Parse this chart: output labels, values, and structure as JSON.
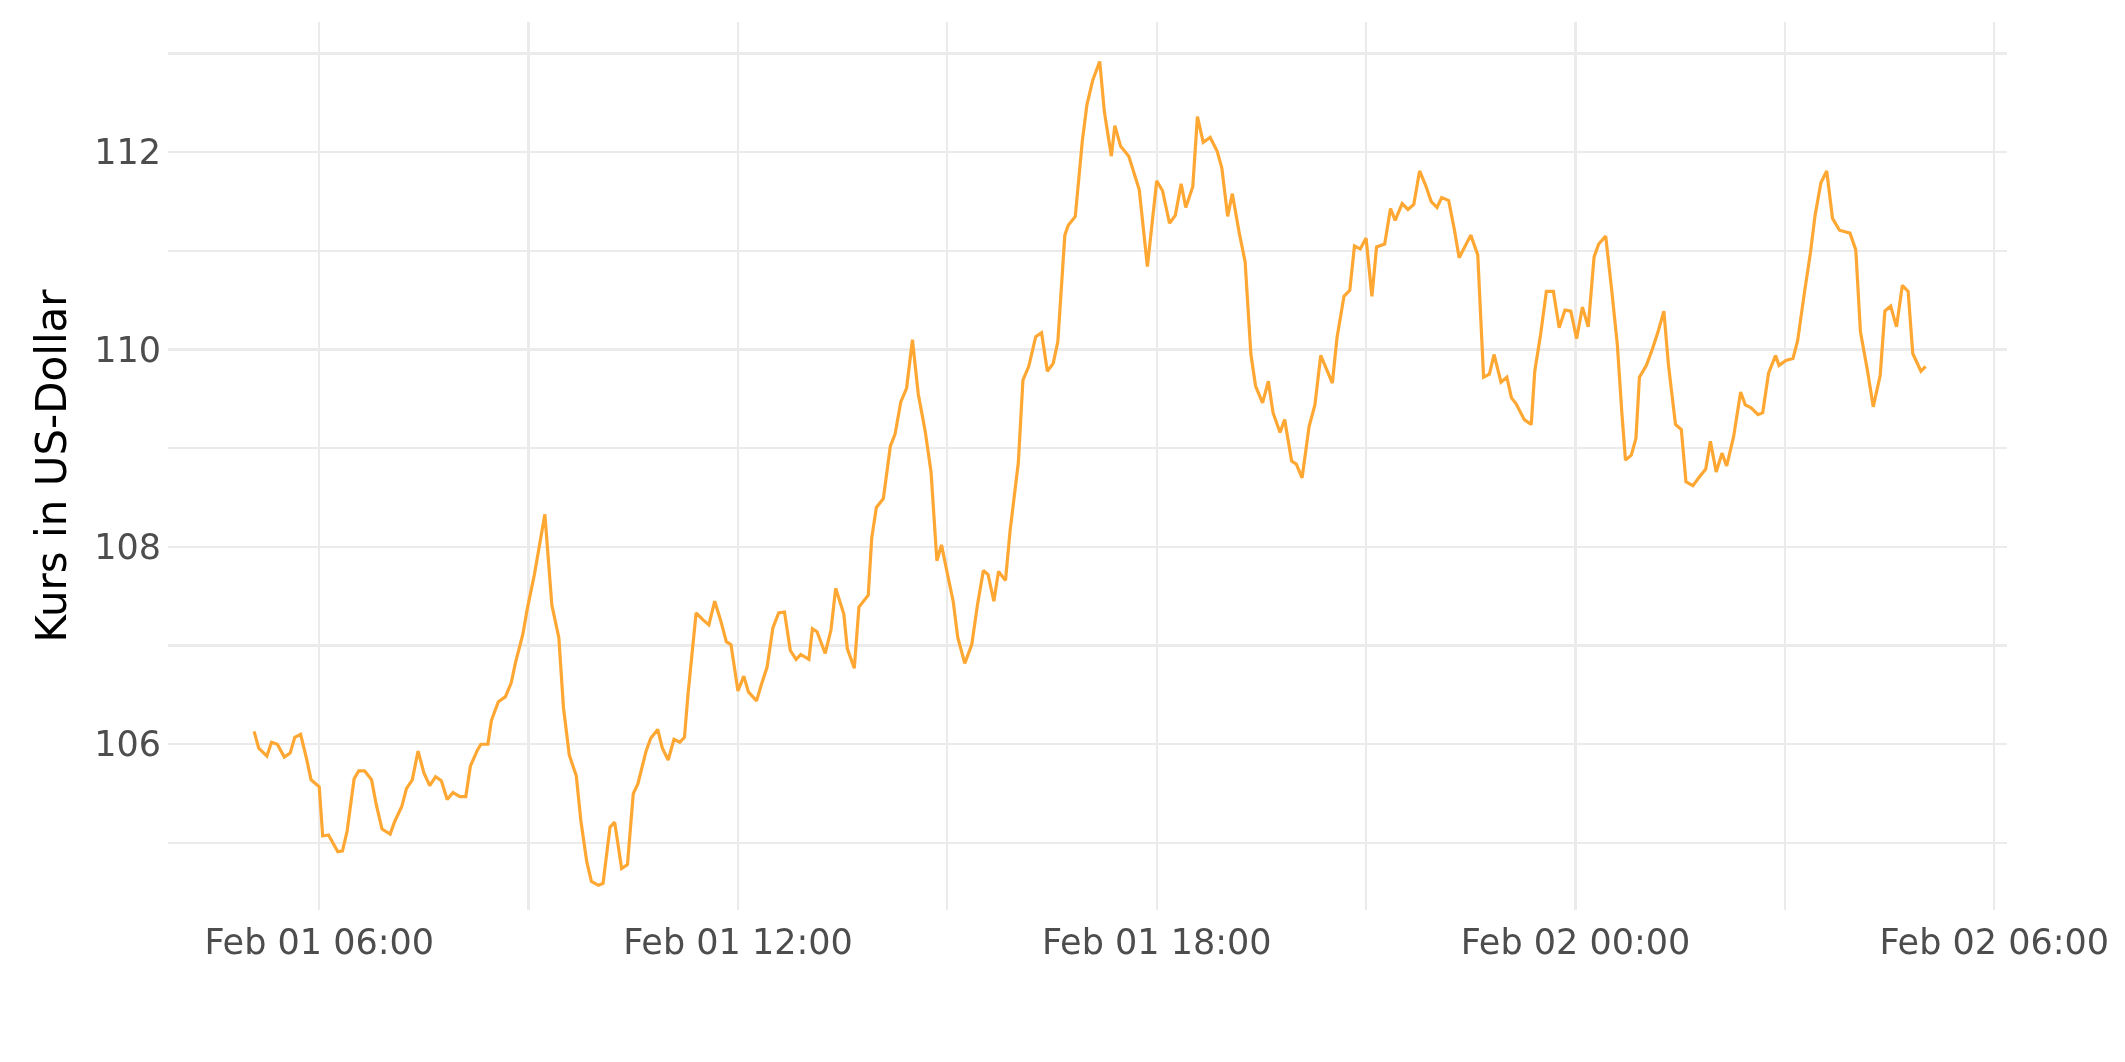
{
  "chart_data": {
    "type": "line",
    "ylabel": "Kurs in US-Dollar",
    "xlim": [
      "--02-01T03:50",
      "--02-02T06:11"
    ],
    "xticks": [
      {
        "value": "--02-01T06:00",
        "label": "Feb 01 06:00"
      },
      {
        "value": "--02-01T09:00",
        "label": null
      },
      {
        "value": "--02-01T12:00",
        "label": "Feb 01 12:00"
      },
      {
        "value": "--02-01T15:00",
        "label": null
      },
      {
        "value": "--02-01T18:00",
        "label": "Feb 01 18:00"
      },
      {
        "value": "--02-01T21:00",
        "label": null
      },
      {
        "value": "--02-02T00:00",
        "label": "Feb 02 00:00"
      },
      {
        "value": "--02-02T03:00",
        "label": null
      },
      {
        "value": "--02-02T06:00",
        "label": "Feb 02 06:00"
      }
    ],
    "ylim": [
      104.32,
      113.32
    ],
    "yticks": [
      {
        "value": 105,
        "label": null
      },
      106,
      {
        "value": 107,
        "label": null
      },
      108,
      {
        "value": 109,
        "label": null
      },
      110,
      {
        "value": 111,
        "label": null
      },
      112,
      {
        "value": 113,
        "label": null
      }
    ],
    "grid": true,
    "marker": "none",
    "line_style": "solid",
    "series": [
      {
        "color": "#ffa733",
        "x": [
          "--02-01T05:04",
          "--02-01T05:08",
          "--02-01T05:15",
          "--02-01T05:19",
          "--02-01T05:24",
          "--02-01T05:30",
          "--02-01T05:35",
          "--02-01T05:39",
          "--02-01T05:44",
          "--02-01T05:49",
          "--02-01T05:53",
          "--02-01T06:00",
          "--02-01T06:03",
          "--02-01T06:08",
          "--02-01T06:16",
          "--02-01T06:20",
          "--02-01T06:24",
          "--02-01T06:30",
          "--02-01T06:34",
          "--02-01T06:39",
          "--02-01T06:45",
          "--02-01T06:49",
          "--02-01T06:54",
          "--02-01T07:01",
          "--02-01T07:05",
          "--02-01T07:11",
          "--02-01T07:15",
          "--02-01T07:20",
          "--02-01T07:25",
          "--02-01T07:30",
          "--02-01T07:35",
          "--02-01T07:40",
          "--02-01T07:45",
          "--02-01T07:50",
          "--02-01T07:55",
          "--02-01T08:01",
          "--02-01T08:06",
          "--02-01T08:10",
          "--02-01T08:16",
          "--02-01T08:19",
          "--02-01T08:25",
          "--02-01T08:28",
          "--02-01T08:34",
          "--02-01T08:40",
          "--02-01T08:45",
          "--02-01T08:49",
          "--02-01T08:55",
          "--02-01T08:59",
          "--02-01T09:05",
          "--02-01T09:14",
          "--02-01T09:20",
          "--02-01T09:26",
          "--02-01T09:30",
          "--02-01T09:35",
          "--02-01T09:41",
          "--02-01T09:45",
          "--02-01T09:50",
          "--02-01T09:54",
          "--02-01T10:00",
          "--02-01T10:04",
          "--02-01T10:10",
          "--02-01T10:14",
          "--02-01T10:20",
          "--02-01T10:25",
          "--02-01T10:30",
          "--02-01T10:34",
          "--02-01T10:41",
          "--02-01T10:45",
          "--02-01T10:51",
          "--02-01T10:55",
          "--02-01T11:00",
          "--02-01T11:05",
          "--02-01T11:10",
          "--02-01T11:14",
          "--02-01T11:17",
          "--02-01T11:24",
          "--02-01T11:30",
          "--02-01T11:35",
          "--02-01T11:40",
          "--02-01T11:45",
          "--02-01T11:50",
          "--02-01T11:54",
          "--02-01T12:00",
          "--02-01T12:05",
          "--02-01T12:09",
          "--02-01T12:16",
          "--02-01T12:20",
          "--02-01T12:25",
          "--02-01T12:30",
          "--02-01T12:35",
          "--02-01T12:40",
          "--02-01T12:45",
          "--02-01T12:50",
          "--02-01T12:54",
          "--02-01T13:01",
          "--02-01T13:04",
          "--02-01T13:08",
          "--02-01T13:15",
          "--02-01T13:20",
          "--02-01T13:24",
          "--02-01T13:31",
          "--02-01T13:34",
          "--02-01T13:40",
          "--02-01T13:44",
          "--02-01T13:52",
          "--02-01T13:55",
          "--02-01T13:59",
          "--02-01T14:05",
          "--02-01T14:11",
          "--02-01T14:15",
          "--02-01T14:20",
          "--02-01T14:25",
          "--02-01T14:30",
          "--02-01T14:35",
          "--02-01T14:41",
          "--02-01T14:46",
          "--02-01T14:51",
          "--02-01T14:55",
          "--02-01T15:00",
          "--02-01T15:05",
          "--02-01T15:09",
          "--02-01T15:15",
          "--02-01T15:21",
          "--02-01T15:26",
          "--02-01T15:31",
          "--02-01T15:35",
          "--02-01T15:40",
          "--02-01T15:44",
          "--02-01T15:50",
          "--02-01T15:54",
          "--02-01T16:01",
          "--02-01T16:05",
          "--02-01T16:10",
          "--02-01T16:16",
          "--02-01T16:21",
          "--02-01T16:26",
          "--02-01T16:31",
          "--02-01T16:35",
          "--02-01T16:41",
          "--02-01T16:44",
          "--02-01T16:50",
          "--02-01T16:56",
          "--02-01T17:00",
          "--02-01T17:05",
          "--02-01T17:11",
          "--02-01T17:15",
          "--02-01T17:21",
          "--02-01T17:24",
          "--02-01T17:29",
          "--02-01T17:36",
          "--02-01T17:45",
          "--02-01T17:52",
          "--02-01T18:00",
          "--02-01T18:05",
          "--02-01T18:11",
          "--02-01T18:16",
          "--02-01T18:21",
          "--02-01T18:25",
          "--02-01T18:31",
          "--02-01T18:35",
          "--02-01T18:40",
          "--02-01T18:46",
          "--02-01T18:52",
          "--02-01T18:56",
          "--02-01T19:01",
          "--02-01T19:05",
          "--02-01T19:11",
          "--02-01T19:16",
          "--02-01T19:21",
          "--02-01T19:25",
          "--02-01T19:31",
          "--02-01T19:36",
          "--02-01T19:40",
          "--02-01T19:46",
          "--02-01T19:50",
          "--02-01T19:56",
          "--02-01T20:00",
          "--02-01T20:05",
          "--02-01T20:11",
          "--02-01T20:16",
          "--02-01T20:21",
          "--02-01T20:31",
          "--02-01T20:35",
          "--02-01T20:41",
          "--02-01T20:46",
          "--02-01T20:50",
          "--02-01T20:55",
          "--02-01T21:00",
          "--02-01T21:05",
          "--02-01T21:09",
          "--02-01T21:16",
          "--02-01T21:21",
          "--02-01T21:25",
          "--02-01T21:31",
          "--02-01T21:36",
          "--02-01T21:41",
          "--02-01T21:46",
          "--02-01T21:51",
          "--02-01T21:56",
          "--02-01T22:01",
          "--02-01T22:05",
          "--02-01T22:11",
          "--02-01T22:16",
          "--02-01T22:20",
          "--02-01T22:30",
          "--02-01T22:36",
          "--02-01T22:41",
          "--02-01T22:46",
          "--02-01T22:50",
          "--02-01T22:56",
          "--02-01T23:01",
          "--02-01T23:05",
          "--02-01T23:09",
          "--02-01T23:16",
          "--02-01T23:22",
          "--02-01T23:25",
          "--02-01T23:30",
          "--02-01T23:35",
          "--02-01T23:41",
          "--02-01T23:46",
          "--02-01T23:51",
          "--02-01T23:56",
          "--02-02T00:01",
          "--02-02T00:06",
          "--02-02T00:11",
          "--02-02T00:16",
          "--02-02T00:20",
          "--02-02T00:26",
          "--02-02T00:31",
          "--02-02T00:36",
          "--02-02T00:40",
          "--02-02T00:43",
          "--02-02T00:48",
          "--02-02T00:52",
          "--02-02T00:55",
          "--02-02T01:01",
          "--02-02T01:06",
          "--02-02T01:11",
          "--02-02T01:16",
          "--02-02T01:20",
          "--02-02T01:26",
          "--02-02T01:31",
          "--02-02T01:35",
          "--02-02T01:41",
          "--02-02T01:46",
          "--02-02T01:52",
          "--02-02T01:56",
          "--02-02T02:01",
          "--02-02T02:06",
          "--02-02T02:10",
          "--02-02T02:16",
          "--02-02T02:22",
          "--02-02T02:26",
          "--02-02T02:31",
          "--02-02T02:37",
          "--02-02T02:41",
          "--02-02T02:46",
          "--02-02T02:52",
          "--02-02T02:55",
          "--02-02T03:01",
          "--02-02T03:07",
          "--02-02T03:11",
          "--02-02T03:17",
          "--02-02T03:22",
          "--02-02T03:26",
          "--02-02T03:31",
          "--02-02T03:36",
          "--02-02T03:41",
          "--02-02T03:47",
          "--02-02T03:56",
          "--02-02T04:01",
          "--02-02T04:05",
          "--02-02T04:11",
          "--02-02T04:16",
          "--02-02T04:22",
          "--02-02T04:26",
          "--02-02T04:31",
          "--02-02T04:36",
          "--02-02T04:41",
          "--02-02T04:46",
          "--02-02T04:50",
          "--02-02T04:57",
          "--02-02T05:01"
        ],
        "values": [
          106.13,
          105.96,
          105.88,
          106.02,
          106.0,
          105.87,
          105.91,
          106.07,
          106.1,
          105.86,
          105.64,
          105.57,
          105.07,
          105.08,
          104.91,
          104.92,
          105.12,
          105.65,
          105.73,
          105.73,
          105.64,
          105.39,
          105.14,
          105.09,
          105.22,
          105.37,
          105.55,
          105.64,
          105.93,
          105.71,
          105.58,
          105.67,
          105.63,
          105.44,
          105.51,
          105.47,
          105.47,
          105.78,
          105.94,
          106.0,
          106.0,
          106.24,
          106.43,
          106.48,
          106.62,
          106.84,
          107.11,
          107.38,
          107.72,
          108.33,
          107.41,
          107.08,
          106.37,
          105.89,
          105.68,
          105.22,
          104.81,
          104.61,
          104.57,
          104.59,
          105.16,
          105.21,
          104.74,
          104.78,
          105.5,
          105.6,
          105.93,
          106.06,
          106.15,
          105.96,
          105.84,
          106.05,
          106.02,
          106.07,
          106.5,
          107.33,
          107.26,
          107.21,
          107.45,
          107.26,
          107.04,
          107.01,
          106.54,
          106.69,
          106.53,
          106.44,
          106.6,
          106.78,
          107.18,
          107.33,
          107.34,
          106.95,
          106.86,
          106.91,
          106.86,
          107.17,
          107.14,
          106.92,
          107.16,
          107.58,
          107.32,
          106.97,
          106.77,
          107.39,
          107.51,
          108.09,
          108.4,
          108.49,
          109.02,
          109.14,
          109.47,
          109.61,
          110.1,
          109.55,
          109.17,
          108.76,
          107.86,
          108.02,
          107.73,
          107.45,
          107.08,
          106.82,
          107.01,
          107.42,
          107.76,
          107.72,
          107.45,
          107.75,
          107.66,
          108.17,
          108.85,
          109.69,
          109.83,
          110.13,
          110.17,
          109.78,
          109.86,
          110.08,
          111.16,
          111.26,
          111.35,
          112.11,
          112.48,
          112.73,
          112.92,
          112.41,
          111.96,
          112.27,
          112.06,
          111.96,
          111.62,
          110.84,
          111.71,
          111.61,
          111.28,
          111.36,
          111.68,
          111.44,
          111.65,
          112.36,
          112.1,
          112.15,
          112.01,
          111.84,
          111.35,
          111.58,
          111.18,
          110.89,
          109.95,
          109.63,
          109.46,
          109.68,
          109.36,
          109.16,
          109.29,
          108.87,
          108.84,
          108.7,
          109.22,
          109.44,
          109.94,
          109.66,
          110.12,
          110.54,
          110.6,
          111.05,
          111.02,
          111.13,
          110.54,
          111.04,
          111.07,
          111.43,
          111.31,
          111.48,
          111.42,
          111.47,
          111.81,
          111.67,
          111.5,
          111.44,
          111.54,
          111.51,
          111.21,
          110.93,
          111.16,
          110.96,
          109.72,
          109.75,
          109.95,
          109.67,
          109.72,
          109.51,
          109.45,
          109.29,
          109.24,
          109.78,
          110.15,
          110.59,
          110.59,
          110.22,
          110.4,
          110.39,
          110.11,
          110.43,
          110.23,
          110.94,
          111.07,
          111.15,
          110.62,
          110.05,
          109.34,
          108.88,
          108.93,
          109.1,
          109.72,
          109.84,
          110.0,
          110.18,
          110.39,
          109.84,
          109.24,
          109.19,
          108.66,
          108.62,
          108.7,
          108.79,
          109.07,
          108.76,
          108.95,
          108.82,
          109.12,
          109.57,
          109.44,
          109.41,
          109.34,
          109.36,
          109.76,
          109.94,
          109.84,
          109.89,
          109.91,
          110.09,
          110.59,
          110.98,
          111.36,
          111.69,
          111.81,
          111.33,
          111.21,
          111.18,
          111.01,
          110.18,
          109.79,
          109.42,
          109.74,
          110.39,
          110.44,
          110.23,
          110.65,
          110.59,
          109.96,
          109.78,
          109.83
        ]
      }
    ]
  }
}
